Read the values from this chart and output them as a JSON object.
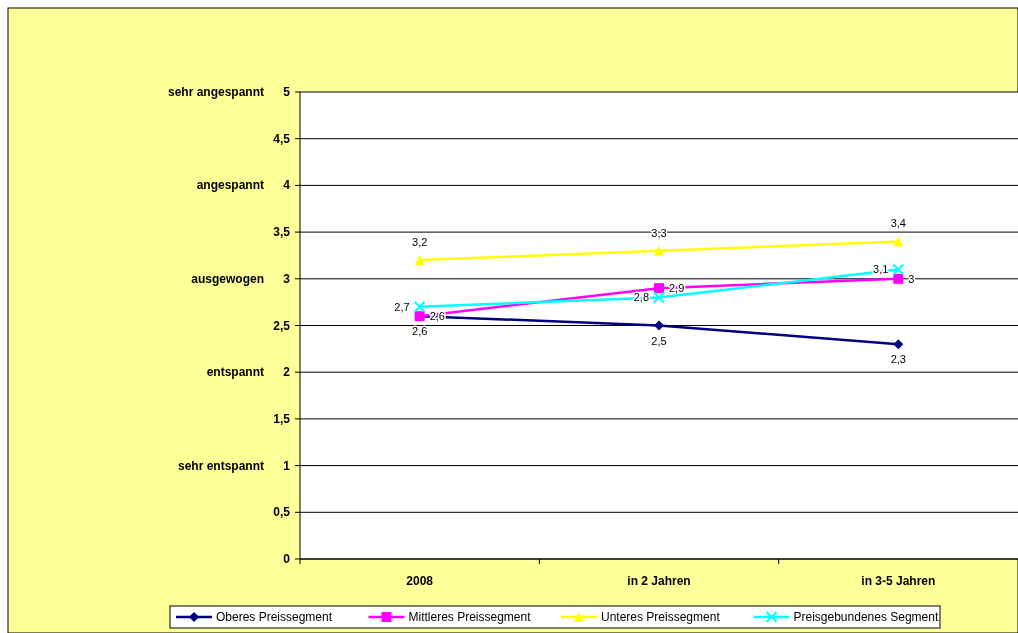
{
  "chart_data": {
    "type": "line",
    "categories": [
      "2008",
      "in 2 Jahren",
      "in 3-5 Jahren"
    ],
    "ylim": [
      0,
      5
    ],
    "yticks": [
      0,
      {
        "value": 0.5,
        "label": "0,5"
      },
      1,
      {
        "value": 1.5,
        "label": "1,5"
      },
      2,
      {
        "value": 2.5,
        "label": "2,5"
      },
      3,
      {
        "value": 3.5,
        "label": "3,5"
      },
      4,
      {
        "value": 4.5,
        "label": "4,5"
      },
      5
    ],
    "grid": "y",
    "legend": "bottom",
    "annotations": [
      "sehr angespannt",
      "angespannt",
      "ausgewogen",
      "entspannt",
      "sehr entspannt"
    ],
    "series": [
      {
        "name": "Oberes Preissegment",
        "color": "#000080",
        "marker": "diamond",
        "values": [
          2.6,
          2.5,
          2.3
        ],
        "value_labels": [
          "2,6",
          "2,5",
          "2,3"
        ]
      },
      {
        "name": "Mittleres Preissegment",
        "color": "#ff00ff",
        "marker": "square",
        "values": [
          2.6,
          2.9,
          3
        ],
        "value_labels": [
          "2,6",
          "2,9",
          "3"
        ]
      },
      {
        "name": "Unteres Preissegment",
        "color": "#ffff00",
        "marker": "triangle",
        "values": [
          3.2,
          3.3,
          3.4
        ],
        "value_labels": [
          "3,2",
          "3,3",
          "3,4"
        ]
      },
      {
        "name": "Preisgebundenes Segment",
        "color": "#00ffff",
        "marker": "cross",
        "values": [
          2.7,
          2.8,
          3.1
        ],
        "value_labels": [
          "2,7",
          "2,8",
          "3,1"
        ]
      }
    ]
  }
}
